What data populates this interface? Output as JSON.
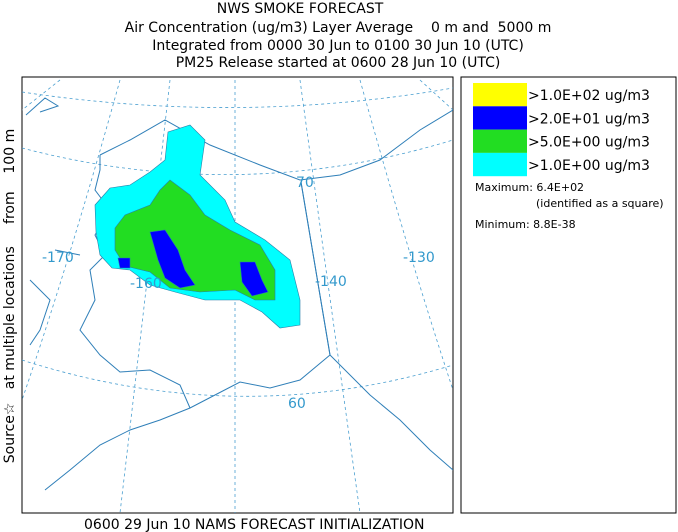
{
  "header": {
    "title": "NWS SMOKE FORECAST",
    "lines": [
      "Air Concentration (ug/m3) Layer Average    0 m and  5000 m",
      "Integrated from 0000 30 Jun to 0100 30 Jun 10 (UTC)",
      "PM25 Release started at 0600 28 Jun 10 (UTC)"
    ]
  },
  "side_label": "Source☆   at multiple locations     from    100 m",
  "map": {
    "longitude_labels": [
      "-170",
      "-160",
      "-140",
      "-130"
    ],
    "latitude_labels": [
      "70",
      "60"
    ]
  },
  "legend": {
    "items": [
      {
        "label": ">1.0E+02 ug/m3",
        "color": "#ffff00"
      },
      {
        "label": ">2.0E+01 ug/m3",
        "color": "#0000ff"
      },
      {
        "label": ">5.0E+00 ug/m3",
        "color": "#22dd22"
      },
      {
        "label": ">1.0E+00 ug/m3",
        "color": "#00ffff"
      }
    ],
    "maximum": "Maximum: 6.4E+02",
    "maximum_note": "(identified as a square)",
    "minimum": "Minimum: 8.8E-38"
  },
  "footer": "0600 29 Jun 10 NAMS FORECAST INITIALIZATION"
}
